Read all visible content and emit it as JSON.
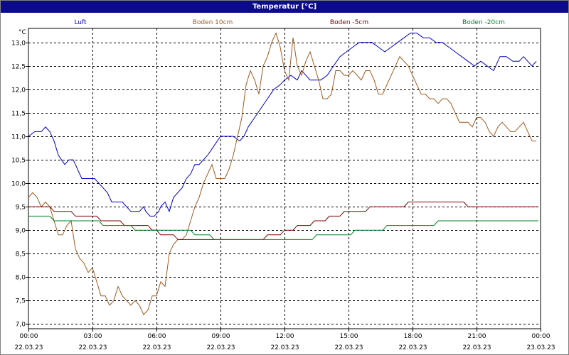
{
  "chart_data": {
    "type": "line",
    "title": "Temperatur [°C]",
    "ylabel": "°C",
    "xlabel": "",
    "ylim": [
      6.9,
      13.3
    ],
    "xlim": [
      0,
      24
    ],
    "grid": true,
    "legend_placement": "top",
    "y_ticks": [
      {
        "value": 7.0,
        "label": "7,0"
      },
      {
        "value": 7.5,
        "label": "7,5"
      },
      {
        "value": 8.0,
        "label": "8,0"
      },
      {
        "value": 8.5,
        "label": "8,5"
      },
      {
        "value": 9.0,
        "label": "9,0"
      },
      {
        "value": 9.5,
        "label": "9,5"
      },
      {
        "value": 10.0,
        "label": "10,0"
      },
      {
        "value": 10.5,
        "label": "10,5"
      },
      {
        "value": 11.0,
        "label": "11,0"
      },
      {
        "value": 11.5,
        "label": "11,5"
      },
      {
        "value": 12.0,
        "label": "12,0"
      },
      {
        "value": 12.5,
        "label": "12,5"
      },
      {
        "value": 13.0,
        "label": "13,0"
      }
    ],
    "x_ticks": [
      {
        "value": 0,
        "time": "00:00",
        "date": "22.03.23"
      },
      {
        "value": 3,
        "time": "03:00",
        "date": "22.03.23"
      },
      {
        "value": 6,
        "time": "06:00",
        "date": "22.03.23"
      },
      {
        "value": 9,
        "time": "09:00",
        "date": "22.03.23"
      },
      {
        "value": 12,
        "time": "12:00",
        "date": "22.03.23"
      },
      {
        "value": 15,
        "time": "15:00",
        "date": "22.03.23"
      },
      {
        "value": 18,
        "time": "18:00",
        "date": "22.03.23"
      },
      {
        "value": 21,
        "time": "21:00",
        "date": "22.03.23"
      },
      {
        "value": 24,
        "time": "00:00",
        "date": "23.03.23"
      }
    ],
    "series": [
      {
        "name": "Luft",
        "color": "#0000cc",
        "points": [
          [
            0,
            11.0
          ],
          [
            0.3,
            11.1
          ],
          [
            0.6,
            11.1
          ],
          [
            0.8,
            11.2
          ],
          [
            1.0,
            11.1
          ],
          [
            1.2,
            10.9
          ],
          [
            1.4,
            10.6
          ],
          [
            1.7,
            10.4
          ],
          [
            1.9,
            10.5
          ],
          [
            2.1,
            10.5
          ],
          [
            2.3,
            10.3
          ],
          [
            2.5,
            10.1
          ],
          [
            2.8,
            10.1
          ],
          [
            3.1,
            10.1
          ],
          [
            3.3,
            10.0
          ],
          [
            3.5,
            9.9
          ],
          [
            3.7,
            9.8
          ],
          [
            3.9,
            9.6
          ],
          [
            4.2,
            9.6
          ],
          [
            4.4,
            9.6
          ],
          [
            4.6,
            9.5
          ],
          [
            4.8,
            9.4
          ],
          [
            5.0,
            9.4
          ],
          [
            5.2,
            9.4
          ],
          [
            5.4,
            9.5
          ],
          [
            5.5,
            9.4
          ],
          [
            5.7,
            9.3
          ],
          [
            5.9,
            9.3
          ],
          [
            6.1,
            9.4
          ],
          [
            6.2,
            9.5
          ],
          [
            6.4,
            9.6
          ],
          [
            6.6,
            9.4
          ],
          [
            6.8,
            9.7
          ],
          [
            7.0,
            9.8
          ],
          [
            7.2,
            9.9
          ],
          [
            7.4,
            10.1
          ],
          [
            7.6,
            10.2
          ],
          [
            7.8,
            10.4
          ],
          [
            8.0,
            10.4
          ],
          [
            8.2,
            10.5
          ],
          [
            8.4,
            10.6
          ],
          [
            8.7,
            10.8
          ],
          [
            9.0,
            11.0
          ],
          [
            9.3,
            11.0
          ],
          [
            9.6,
            11.0
          ],
          [
            9.9,
            10.9
          ],
          [
            10.1,
            11.0
          ],
          [
            10.3,
            11.2
          ],
          [
            10.6,
            11.4
          ],
          [
            10.9,
            11.6
          ],
          [
            11.2,
            11.8
          ],
          [
            11.5,
            12.0
          ],
          [
            11.8,
            12.1
          ],
          [
            12.0,
            12.2
          ],
          [
            12.3,
            12.3
          ],
          [
            12.6,
            12.2
          ],
          [
            12.8,
            12.4
          ],
          [
            13.0,
            12.3
          ],
          [
            13.2,
            12.2
          ],
          [
            13.4,
            12.2
          ],
          [
            13.7,
            12.2
          ],
          [
            14.0,
            12.3
          ],
          [
            14.3,
            12.5
          ],
          [
            14.6,
            12.7
          ],
          [
            14.9,
            12.8
          ],
          [
            15.2,
            12.9
          ],
          [
            15.5,
            13.0
          ],
          [
            15.8,
            13.0
          ],
          [
            16.1,
            13.0
          ],
          [
            16.4,
            12.9
          ],
          [
            16.7,
            12.8
          ],
          [
            17.0,
            12.9
          ],
          [
            17.3,
            13.0
          ],
          [
            17.6,
            13.1
          ],
          [
            17.9,
            13.2
          ],
          [
            18.2,
            13.2
          ],
          [
            18.5,
            13.1
          ],
          [
            18.8,
            13.1
          ],
          [
            19.1,
            13.0
          ],
          [
            19.4,
            13.0
          ],
          [
            19.7,
            12.9
          ],
          [
            20.0,
            12.8
          ],
          [
            20.3,
            12.7
          ],
          [
            20.6,
            12.6
          ],
          [
            20.9,
            12.5
          ],
          [
            21.2,
            12.6
          ],
          [
            21.5,
            12.5
          ],
          [
            21.8,
            12.4
          ],
          [
            22.1,
            12.7
          ],
          [
            22.4,
            12.7
          ],
          [
            22.7,
            12.6
          ],
          [
            23.0,
            12.6
          ],
          [
            23.2,
            12.7
          ],
          [
            23.4,
            12.6
          ],
          [
            23.6,
            12.5
          ],
          [
            23.8,
            12.6
          ]
        ]
      },
      {
        "name": "Boden 10cm",
        "color": "#a05a1e",
        "points": [
          [
            0,
            9.7
          ],
          [
            0.2,
            9.8
          ],
          [
            0.4,
            9.7
          ],
          [
            0.6,
            9.5
          ],
          [
            0.8,
            9.6
          ],
          [
            1.0,
            9.5
          ],
          [
            1.2,
            9.2
          ],
          [
            1.4,
            8.9
          ],
          [
            1.6,
            8.9
          ],
          [
            1.8,
            9.1
          ],
          [
            2.0,
            9.2
          ],
          [
            2.2,
            8.6
          ],
          [
            2.4,
            8.4
          ],
          [
            2.6,
            8.3
          ],
          [
            2.8,
            8.1
          ],
          [
            3.0,
            8.2
          ],
          [
            3.2,
            7.9
          ],
          [
            3.4,
            7.6
          ],
          [
            3.6,
            7.6
          ],
          [
            3.8,
            7.4
          ],
          [
            4.0,
            7.5
          ],
          [
            4.2,
            7.8
          ],
          [
            4.4,
            7.6
          ],
          [
            4.6,
            7.5
          ],
          [
            4.8,
            7.4
          ],
          [
            5.0,
            7.5
          ],
          [
            5.2,
            7.4
          ],
          [
            5.4,
            7.2
          ],
          [
            5.6,
            7.3
          ],
          [
            5.8,
            7.6
          ],
          [
            6.0,
            7.6
          ],
          [
            6.2,
            7.9
          ],
          [
            6.4,
            7.8
          ],
          [
            6.6,
            8.5
          ],
          [
            6.8,
            8.7
          ],
          [
            7.0,
            8.8
          ],
          [
            7.2,
            8.8
          ],
          [
            7.4,
            8.9
          ],
          [
            7.6,
            9.2
          ],
          [
            7.8,
            9.5
          ],
          [
            8.0,
            9.7
          ],
          [
            8.2,
            10.0
          ],
          [
            8.4,
            10.2
          ],
          [
            8.6,
            10.4
          ],
          [
            8.8,
            10.1
          ],
          [
            9.0,
            10.1
          ],
          [
            9.2,
            10.1
          ],
          [
            9.4,
            10.3
          ],
          [
            9.6,
            10.6
          ],
          [
            9.8,
            11.0
          ],
          [
            10.0,
            11.4
          ],
          [
            10.2,
            12.1
          ],
          [
            10.4,
            12.4
          ],
          [
            10.6,
            12.2
          ],
          [
            10.8,
            11.9
          ],
          [
            11.0,
            12.5
          ],
          [
            11.2,
            12.7
          ],
          [
            11.4,
            13.0
          ],
          [
            11.6,
            13.2
          ],
          [
            11.8,
            12.9
          ],
          [
            12.0,
            12.4
          ],
          [
            12.2,
            12.2
          ],
          [
            12.4,
            13.1
          ],
          [
            12.6,
            12.5
          ],
          [
            12.8,
            12.3
          ],
          [
            13.0,
            12.6
          ],
          [
            13.2,
            12.8
          ],
          [
            13.4,
            12.5
          ],
          [
            13.6,
            12.2
          ],
          [
            13.8,
            11.8
          ],
          [
            14.0,
            11.8
          ],
          [
            14.2,
            11.9
          ],
          [
            14.4,
            12.4
          ],
          [
            14.6,
            12.4
          ],
          [
            14.8,
            12.3
          ],
          [
            15.0,
            12.3
          ],
          [
            15.2,
            12.4
          ],
          [
            15.4,
            12.3
          ],
          [
            15.6,
            12.2
          ],
          [
            15.8,
            12.4
          ],
          [
            16.0,
            12.4
          ],
          [
            16.2,
            12.2
          ],
          [
            16.4,
            11.9
          ],
          [
            16.6,
            11.9
          ],
          [
            16.8,
            12.1
          ],
          [
            17.0,
            12.3
          ],
          [
            17.2,
            12.5
          ],
          [
            17.4,
            12.7
          ],
          [
            17.6,
            12.6
          ],
          [
            17.8,
            12.5
          ],
          [
            18.0,
            12.3
          ],
          [
            18.2,
            12.1
          ],
          [
            18.4,
            11.9
          ],
          [
            18.6,
            11.9
          ],
          [
            18.8,
            11.8
          ],
          [
            19.0,
            11.8
          ],
          [
            19.2,
            11.7
          ],
          [
            19.4,
            11.8
          ],
          [
            19.6,
            11.8
          ],
          [
            19.8,
            11.7
          ],
          [
            20.0,
            11.5
          ],
          [
            20.2,
            11.3
          ],
          [
            20.4,
            11.3
          ],
          [
            20.6,
            11.3
          ],
          [
            20.8,
            11.2
          ],
          [
            21.0,
            11.4
          ],
          [
            21.2,
            11.4
          ],
          [
            21.4,
            11.3
          ],
          [
            21.6,
            11.1
          ],
          [
            21.8,
            11.0
          ],
          [
            22.0,
            11.2
          ],
          [
            22.2,
            11.3
          ],
          [
            22.4,
            11.2
          ],
          [
            22.6,
            11.1
          ],
          [
            22.8,
            11.1
          ],
          [
            23.0,
            11.2
          ],
          [
            23.2,
            11.3
          ],
          [
            23.4,
            11.1
          ],
          [
            23.6,
            10.9
          ],
          [
            23.8,
            10.9
          ]
        ]
      },
      {
        "name": "Boden -5cm",
        "color": "#800000",
        "points": [
          [
            0,
            9.5
          ],
          [
            1.0,
            9.5
          ],
          [
            1.2,
            9.4
          ],
          [
            2.0,
            9.4
          ],
          [
            2.2,
            9.3
          ],
          [
            3.2,
            9.3
          ],
          [
            3.4,
            9.2
          ],
          [
            4.3,
            9.2
          ],
          [
            4.5,
            9.1
          ],
          [
            5.6,
            9.1
          ],
          [
            5.8,
            9.0
          ],
          [
            6.0,
            9.0
          ],
          [
            6.2,
            8.9
          ],
          [
            6.8,
            8.9
          ],
          [
            7.0,
            8.8
          ],
          [
            9.0,
            8.8
          ],
          [
            11.0,
            8.8
          ],
          [
            11.2,
            8.9
          ],
          [
            11.8,
            8.9
          ],
          [
            12.0,
            9.0
          ],
          [
            12.4,
            9.0
          ],
          [
            12.6,
            9.1
          ],
          [
            13.2,
            9.1
          ],
          [
            13.4,
            9.2
          ],
          [
            13.9,
            9.2
          ],
          [
            14.1,
            9.3
          ],
          [
            14.6,
            9.3
          ],
          [
            14.8,
            9.4
          ],
          [
            15.8,
            9.4
          ],
          [
            16.0,
            9.5
          ],
          [
            17.6,
            9.5
          ],
          [
            17.8,
            9.6
          ],
          [
            20.4,
            9.6
          ],
          [
            20.6,
            9.5
          ],
          [
            23.9,
            9.5
          ]
        ]
      },
      {
        "name": "Boden -20cm",
        "color": "#00802b",
        "points": [
          [
            0,
            9.3
          ],
          [
            1.0,
            9.3
          ],
          [
            1.2,
            9.2
          ],
          [
            3.3,
            9.2
          ],
          [
            3.5,
            9.1
          ],
          [
            4.8,
            9.1
          ],
          [
            5.0,
            9.0
          ],
          [
            7.6,
            9.0
          ],
          [
            7.8,
            8.9
          ],
          [
            8.5,
            8.9
          ],
          [
            8.7,
            8.8
          ],
          [
            13.3,
            8.8
          ],
          [
            13.5,
            8.9
          ],
          [
            15.1,
            8.9
          ],
          [
            15.3,
            9.0
          ],
          [
            16.6,
            9.0
          ],
          [
            16.8,
            9.1
          ],
          [
            19.0,
            9.1
          ],
          [
            19.2,
            9.2
          ],
          [
            23.9,
            9.2
          ]
        ]
      }
    ]
  }
}
